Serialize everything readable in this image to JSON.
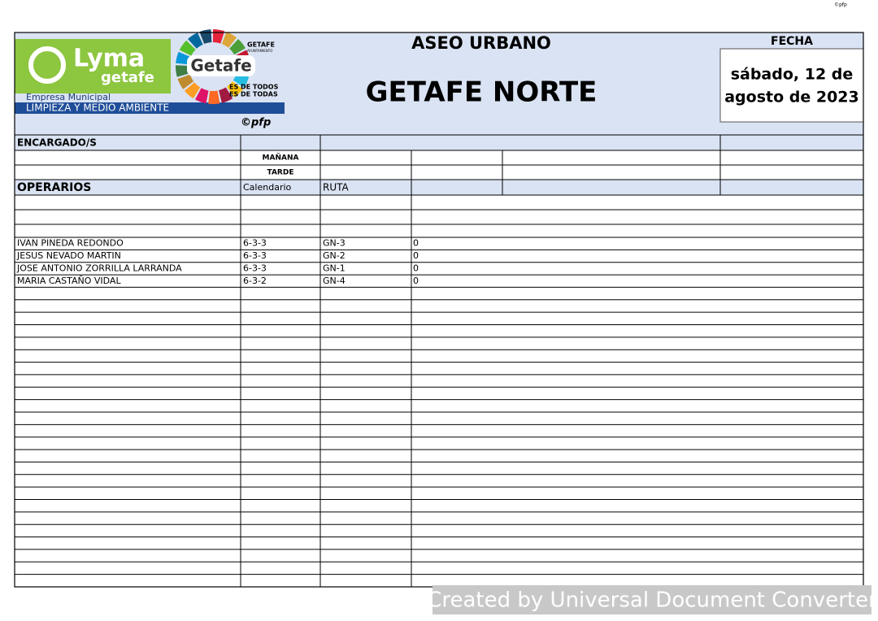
{
  "watermark_top": "©pfp",
  "header": {
    "title": "ASEO URBANO",
    "subtitle": "GETAFE NORTE",
    "date_label": "FECHA",
    "date_lines": [
      "sábado, 12 de",
      "agosto de 2023"
    ],
    "logo": {
      "brand": "Lyma",
      "brand_sub": "getafe",
      "org": "Empresa Municipal",
      "dept": "LIMPIEZA Y MEDIO AMBIENTE",
      "city": "Getafe",
      "council": "GETAFE",
      "council_sub": "AYUNTAMIENTO",
      "motto": [
        "ES DE TODOS",
        "ES DE TODAS"
      ],
      "credit": "©pfp"
    }
  },
  "table": {
    "supervisors_label": "ENCARGADO/S",
    "shifts": [
      "MAÑANA",
      "TARDE"
    ],
    "workers_label": "OPERARIOS",
    "columns": [
      "Calendario",
      "RUTA"
    ],
    "rows": [
      [
        "IVAN PINEDA REDONDO",
        "6-3-3",
        "GN-3",
        "0"
      ],
      [
        "JESUS NEVADO MARTIN",
        "6-3-3",
        "GN-2",
        "0"
      ],
      [
        "JOSE ANTONIO ZORRILLA LARRANDA",
        "6-3-3",
        "GN-1",
        "0"
      ],
      [
        "MARIA CASTAÑO VIDAL",
        "6-3-2",
        "GN-4",
        "0"
      ]
    ]
  },
  "footer": "Created by Universal Document Converter"
}
